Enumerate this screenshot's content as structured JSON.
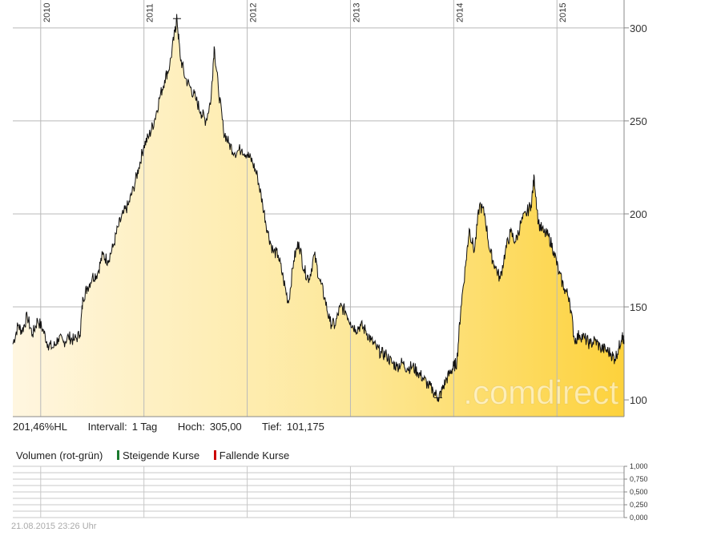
{
  "chart_data": {
    "type": "area",
    "x_ticks": [
      "2010",
      "2011",
      "2012",
      "2013",
      "2014",
      "2015"
    ],
    "y_ticks": [
      300,
      250,
      200,
      150,
      100
    ],
    "ylim": [
      91,
      315
    ],
    "xlim": [
      2009.73,
      2015.65
    ],
    "high": {
      "x": 2011.32,
      "y": 305.0
    },
    "low": {
      "x": 2013.85,
      "y": 101.175
    },
    "series": [
      {
        "points": [
          [
            2009.73,
            130
          ],
          [
            2009.78,
            140
          ],
          [
            2009.82,
            137
          ],
          [
            2009.87,
            145
          ],
          [
            2009.92,
            135
          ],
          [
            2009.97,
            143
          ],
          [
            2010.02,
            138
          ],
          [
            2010.07,
            130
          ],
          [
            2010.12,
            128
          ],
          [
            2010.17,
            133
          ],
          [
            2010.22,
            131
          ],
          [
            2010.27,
            134
          ],
          [
            2010.32,
            132
          ],
          [
            2010.38,
            135
          ],
          [
            2010.41,
            155
          ],
          [
            2010.45,
            160
          ],
          [
            2010.5,
            166
          ],
          [
            2010.55,
            168
          ],
          [
            2010.6,
            178
          ],
          [
            2010.65,
            175
          ],
          [
            2010.7,
            182
          ],
          [
            2010.75,
            193
          ],
          [
            2010.8,
            200
          ],
          [
            2010.85,
            205
          ],
          [
            2010.9,
            214
          ],
          [
            2010.95,
            225
          ],
          [
            2011.0,
            237
          ],
          [
            2011.05,
            242
          ],
          [
            2011.1,
            250
          ],
          [
            2011.15,
            262
          ],
          [
            2011.2,
            272
          ],
          [
            2011.25,
            280
          ],
          [
            2011.3,
            298
          ],
          [
            2011.32,
            305
          ],
          [
            2011.35,
            285
          ],
          [
            2011.4,
            273
          ],
          [
            2011.45,
            268
          ],
          [
            2011.5,
            262
          ],
          [
            2011.55,
            255
          ],
          [
            2011.6,
            250
          ],
          [
            2011.65,
            262
          ],
          [
            2011.68,
            290
          ],
          [
            2011.72,
            268
          ],
          [
            2011.77,
            245
          ],
          [
            2011.82,
            238
          ],
          [
            2011.88,
            233
          ],
          [
            2011.95,
            235
          ],
          [
            2012.0,
            232
          ],
          [
            2012.05,
            228
          ],
          [
            2012.1,
            220
          ],
          [
            2012.15,
            205
          ],
          [
            2012.2,
            190
          ],
          [
            2012.25,
            180
          ],
          [
            2012.3,
            178
          ],
          [
            2012.35,
            165
          ],
          [
            2012.4,
            152
          ],
          [
            2012.45,
            175
          ],
          [
            2012.5,
            185
          ],
          [
            2012.55,
            170
          ],
          [
            2012.6,
            165
          ],
          [
            2012.65,
            178
          ],
          [
            2012.7,
            165
          ],
          [
            2012.75,
            155
          ],
          [
            2012.8,
            142
          ],
          [
            2012.85,
            140
          ],
          [
            2012.9,
            150
          ],
          [
            2012.95,
            148
          ],
          [
            2013.0,
            142
          ],
          [
            2013.05,
            138
          ],
          [
            2013.1,
            140
          ],
          [
            2013.15,
            137
          ],
          [
            2013.2,
            132
          ],
          [
            2013.25,
            128
          ],
          [
            2013.3,
            125
          ],
          [
            2013.35,
            124
          ],
          [
            2013.4,
            120
          ],
          [
            2013.45,
            118
          ],
          [
            2013.5,
            120
          ],
          [
            2013.55,
            117
          ],
          [
            2013.6,
            118
          ],
          [
            2013.65,
            115
          ],
          [
            2013.7,
            112
          ],
          [
            2013.75,
            108
          ],
          [
            2013.8,
            105
          ],
          [
            2013.85,
            101.175
          ],
          [
            2013.88,
            104
          ],
          [
            2013.92,
            110
          ],
          [
            2013.97,
            115
          ],
          [
            2014.0,
            118
          ],
          [
            2014.03,
            120
          ],
          [
            2014.07,
            150
          ],
          [
            2014.12,
            175
          ],
          [
            2014.15,
            192
          ],
          [
            2014.2,
            180
          ],
          [
            2014.25,
            205
          ],
          [
            2014.3,
            200
          ],
          [
            2014.35,
            180
          ],
          [
            2014.4,
            172
          ],
          [
            2014.45,
            165
          ],
          [
            2014.5,
            180
          ],
          [
            2014.55,
            190
          ],
          [
            2014.6,
            185
          ],
          [
            2014.65,
            195
          ],
          [
            2014.7,
            200
          ],
          [
            2014.75,
            205
          ],
          [
            2014.78,
            220
          ],
          [
            2014.82,
            195
          ],
          [
            2014.87,
            190
          ],
          [
            2014.92,
            188
          ],
          [
            2014.97,
            180
          ],
          [
            2015.02,
            168
          ],
          [
            2015.07,
            160
          ],
          [
            2015.12,
            155
          ],
          [
            2015.17,
            132
          ],
          [
            2015.22,
            135
          ],
          [
            2015.27,
            133
          ],
          [
            2015.32,
            130
          ],
          [
            2015.37,
            132
          ],
          [
            2015.42,
            128
          ],
          [
            2015.47,
            127
          ],
          [
            2015.52,
            125
          ],
          [
            2015.56,
            122
          ],
          [
            2015.6,
            128
          ],
          [
            2015.63,
            135
          ],
          [
            2015.65,
            130
          ]
        ]
      }
    ],
    "volume": {
      "y_ticks": [
        "1,000",
        "0,750",
        "0,500",
        "0,250",
        "0,000"
      ]
    }
  },
  "info": {
    "hl": "201,46%HL",
    "interval_label": "Intervall:",
    "interval_value": "1 Tag",
    "high_label": "Hoch:",
    "high_value": "305,00",
    "low_label": "Tief:",
    "low_value": "101,175"
  },
  "volume_legend": {
    "title": "Volumen (rot-grün)",
    "rising": "Steigende Kurse",
    "falling": "Fallende Kurse",
    "rising_color": "#1a7a2e",
    "falling_color": "#cc0000"
  },
  "watermark": ".comdirect",
  "timestamp": "21.08.2015 23:26 Uhr"
}
